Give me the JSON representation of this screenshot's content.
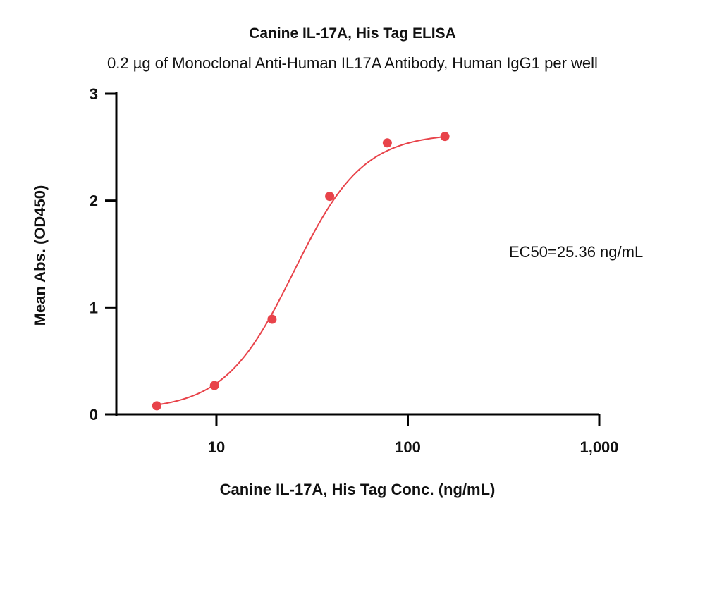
{
  "chart_data": {
    "type": "scatter",
    "title": "Canine IL-17A, His Tag ELISA",
    "subtitle": "0.2 µg of Monoclonal Anti-Human IL17A Antibody, Human IgG1 per well",
    "xlabel": "Canine IL-17A, His Tag Conc. (ng/mL)",
    "ylabel": "Mean Abs. (OD450)",
    "x_scale": "log",
    "xlim": [
      3,
      1000
    ],
    "ylim": [
      0,
      3
    ],
    "x_ticks": [
      10,
      100,
      1000
    ],
    "x_tick_labels": [
      "10",
      "100",
      "1,000"
    ],
    "y_ticks": [
      0,
      1,
      2,
      3
    ],
    "y_tick_labels": [
      "0",
      "1",
      "2",
      "3"
    ],
    "grid": false,
    "annotation": "EC50=25.36 ng/mL",
    "series": [
      {
        "color": "#e8434a",
        "x": [
          4.88,
          9.77,
          19.53,
          39.06,
          78.13,
          156.25
        ],
        "y": [
          0.08,
          0.27,
          0.89,
          2.04,
          2.54,
          2.6
        ],
        "fit": {
          "model": "4PL",
          "bottom": 0.04,
          "top": 2.63,
          "ec50": 25.36,
          "hill": 2.4
        }
      }
    ]
  }
}
